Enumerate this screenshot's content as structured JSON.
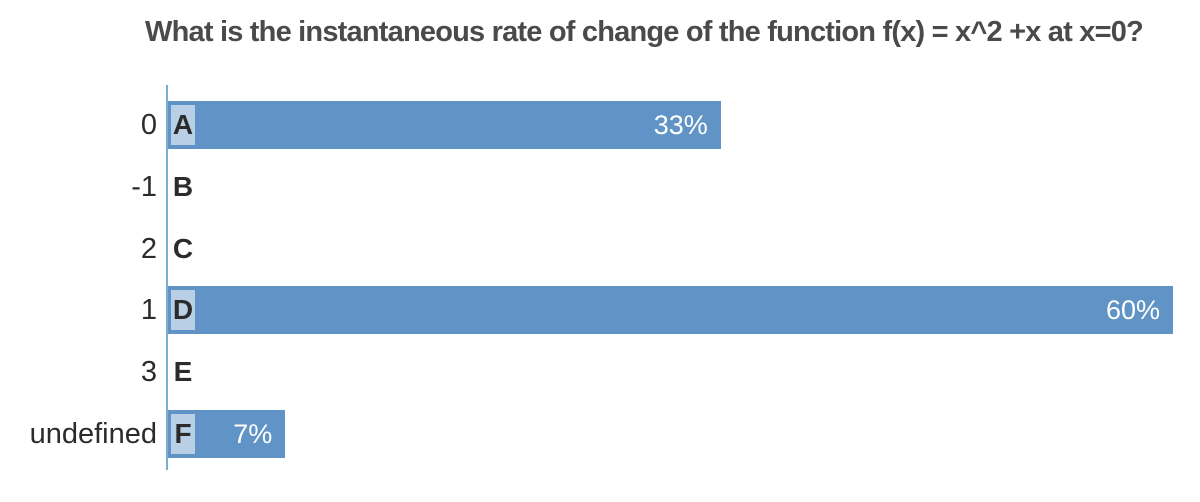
{
  "chart_data": {
    "type": "bar",
    "orientation": "horizontal",
    "title": "What is the instantaneous rate of change of the function f(x) = x^2 +x at x=0?",
    "categories": [
      "0",
      "-1",
      "2",
      "1",
      "3",
      "undefined"
    ],
    "option_letters": [
      "A",
      "B",
      "C",
      "D",
      "E",
      "F"
    ],
    "values": [
      33,
      0,
      0,
      60,
      0,
      7
    ],
    "value_labels": [
      "33%",
      "",
      "",
      "60%",
      "",
      "7%"
    ],
    "unit": "percent",
    "xlabel": "",
    "ylabel": "",
    "xlim": [
      0,
      61.5
    ],
    "grid": false,
    "legend": false
  },
  "colors": {
    "bar": "#6094c6",
    "letter_highlight": "#b8cfe6",
    "axis_line": "#79add2",
    "title_text": "#4a4a4a",
    "label_text": "#2b2b2b",
    "percent_text": "#ffffff"
  }
}
